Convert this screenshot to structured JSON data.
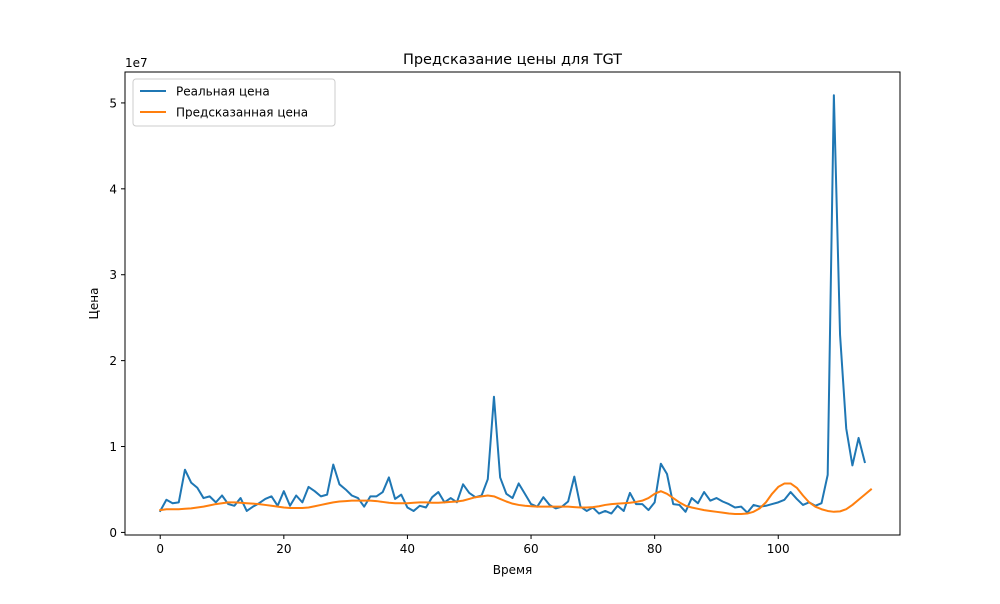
{
  "chart_data": {
    "type": "line",
    "title": "Предсказание цены для TGT",
    "xlabel": "Время",
    "ylabel": "Цена",
    "y_offset_label": "1e7",
    "xlim": [
      -5.7,
      119.7
    ],
    "ylim": [
      -0.03,
      5.36
    ],
    "y_unit": "1e7",
    "x_ticks": [
      0,
      20,
      40,
      60,
      80,
      100
    ],
    "y_ticks": [
      0,
      1,
      2,
      3,
      4,
      5
    ],
    "grid": false,
    "legend_position": "upper left",
    "series": [
      {
        "name": "Реальная цена",
        "color": "#1f77b4",
        "x_start": 0,
        "values": [
          0.25,
          0.38,
          0.34,
          0.35,
          0.73,
          0.58,
          0.52,
          0.4,
          0.42,
          0.35,
          0.43,
          0.33,
          0.31,
          0.4,
          0.25,
          0.3,
          0.34,
          0.39,
          0.42,
          0.31,
          0.48,
          0.31,
          0.43,
          0.35,
          0.53,
          0.48,
          0.42,
          0.44,
          0.79,
          0.56,
          0.5,
          0.43,
          0.4,
          0.3,
          0.42,
          0.42,
          0.47,
          0.64,
          0.39,
          0.44,
          0.29,
          0.25,
          0.31,
          0.29,
          0.41,
          0.47,
          0.35,
          0.4,
          0.35,
          0.56,
          0.46,
          0.41,
          0.43,
          0.62,
          1.58,
          0.64,
          0.45,
          0.4,
          0.57,
          0.45,
          0.33,
          0.3,
          0.41,
          0.32,
          0.28,
          0.3,
          0.36,
          0.65,
          0.3,
          0.25,
          0.29,
          0.22,
          0.25,
          0.22,
          0.31,
          0.25,
          0.46,
          0.33,
          0.33,
          0.26,
          0.35,
          0.8,
          0.68,
          0.33,
          0.32,
          0.24,
          0.4,
          0.34,
          0.47,
          0.37,
          0.4,
          0.36,
          0.33,
          0.29,
          0.3,
          0.23,
          0.32,
          0.3,
          0.31,
          0.33,
          0.35,
          0.38,
          0.47,
          0.39,
          0.32,
          0.35,
          0.31,
          0.34,
          0.67,
          5.09,
          2.3,
          1.21,
          0.78,
          1.1,
          0.82
        ]
      },
      {
        "name": "Предсказанная цена",
        "color": "#ff7f0e",
        "x_start": 0,
        "values": [
          0.26,
          0.27,
          0.27,
          0.27,
          0.275,
          0.28,
          0.29,
          0.3,
          0.315,
          0.33,
          0.34,
          0.35,
          0.35,
          0.345,
          0.34,
          0.335,
          0.33,
          0.32,
          0.31,
          0.3,
          0.29,
          0.285,
          0.285,
          0.285,
          0.29,
          0.305,
          0.32,
          0.335,
          0.35,
          0.36,
          0.365,
          0.37,
          0.37,
          0.37,
          0.37,
          0.365,
          0.355,
          0.345,
          0.34,
          0.34,
          0.34,
          0.345,
          0.35,
          0.35,
          0.345,
          0.345,
          0.35,
          0.355,
          0.36,
          0.37,
          0.39,
          0.41,
          0.42,
          0.43,
          0.42,
          0.39,
          0.36,
          0.335,
          0.32,
          0.31,
          0.305,
          0.3,
          0.3,
          0.3,
          0.3,
          0.3,
          0.3,
          0.295,
          0.29,
          0.29,
          0.295,
          0.305,
          0.32,
          0.33,
          0.335,
          0.34,
          0.345,
          0.355,
          0.37,
          0.4,
          0.45,
          0.48,
          0.45,
          0.4,
          0.35,
          0.31,
          0.29,
          0.275,
          0.26,
          0.25,
          0.24,
          0.23,
          0.22,
          0.215,
          0.215,
          0.22,
          0.24,
          0.28,
          0.35,
          0.45,
          0.53,
          0.57,
          0.57,
          0.52,
          0.43,
          0.35,
          0.3,
          0.27,
          0.25,
          0.24,
          0.245,
          0.27,
          0.32,
          0.38,
          0.44,
          0.5
        ]
      }
    ]
  }
}
